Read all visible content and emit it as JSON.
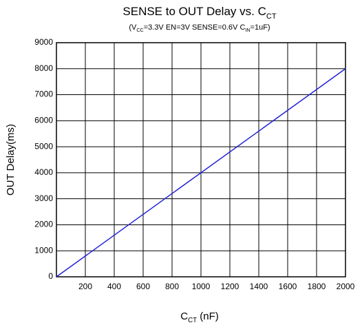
{
  "chart_data": {
    "type": "line",
    "title": [
      {
        "text": "SENSE to OUT Delay vs. C"
      },
      {
        "text": "CT",
        "sub": true
      }
    ],
    "subtitle": [
      {
        "text": "(V"
      },
      {
        "text": "CC",
        "sub": true
      },
      {
        "text": "=3.3V EN=3V  SENSE=0.6V C"
      },
      {
        "text": "IN",
        "sub": true
      },
      {
        "text": "=1uF)"
      }
    ],
    "x_label": [
      {
        "text": "C"
      },
      {
        "text": "CT",
        "sub": true
      },
      {
        "text": " (nF)"
      }
    ],
    "y_label": "OUT Delay(ms)",
    "x": [
      0,
      2000
    ],
    "series": [
      {
        "name": "OUT Delay",
        "color": "#1f1fd6",
        "values": [
          0,
          8000
        ]
      }
    ],
    "xlim": [
      0,
      2000
    ],
    "xticks": [
      200,
      400,
      600,
      800,
      1000,
      1200,
      1400,
      1600,
      1800,
      2000
    ],
    "ylim": [
      0,
      9000
    ],
    "yticks": [
      0,
      1000,
      2000,
      3000,
      4000,
      5000,
      6000,
      7000,
      8000,
      9000
    ],
    "grid": true
  }
}
